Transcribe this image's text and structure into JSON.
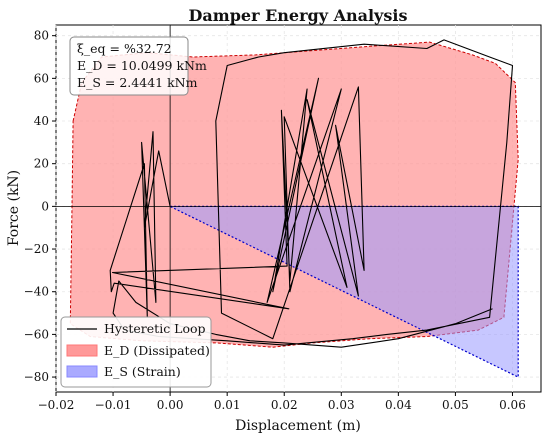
{
  "chart_data": {
    "type": "line",
    "title": "Damper Energy Analysis",
    "xlabel": "Displacement (m)",
    "ylabel": "Force (kN)",
    "xlim": [
      -0.02,
      0.065
    ],
    "ylim": [
      -87,
      85
    ],
    "xticks": [
      -0.02,
      -0.01,
      0.0,
      0.01,
      0.02,
      0.03,
      0.04,
      0.05,
      0.06
    ],
    "xtick_labels": [
      "−0.02",
      "−0.01",
      "0.00",
      "0.01",
      "0.02",
      "0.03",
      "0.04",
      "0.05",
      "0.06"
    ],
    "yticks": [
      -80,
      -60,
      -40,
      -20,
      0,
      20,
      40,
      60,
      80
    ],
    "ytick_labels": [
      "−80",
      "−60",
      "−40",
      "−20",
      "0",
      "20",
      "40",
      "60",
      "80"
    ],
    "grid": true,
    "legend_position": "lower-left",
    "annotations": {
      "xi_eq": "ξ_eq = %32.72",
      "e_d": "E_D = 10.0499 kNm",
      "e_s": "E_S = 2.4441 kNm"
    },
    "series": [
      {
        "name": "E_D (Dissipated)",
        "kind": "filled-polygon",
        "color": "#ff9999",
        "edge_color": "#cc0000",
        "x": [
          -0.017,
          -0.0155,
          -0.012,
          -0.004,
          0.004,
          0.015,
          0.025,
          0.035,
          0.0455,
          0.053,
          0.057,
          0.0605,
          0.061,
          0.0585,
          0.054,
          0.045,
          0.035,
          0.025,
          0.018,
          0.008,
          -0.005,
          -0.014,
          -0.0175,
          -0.0172
        ],
        "y": [
          40,
          58,
          70,
          72,
          70,
          71,
          73,
          75,
          77,
          71,
          67,
          58,
          22,
          -52,
          -58,
          -61,
          -62,
          -64,
          -66,
          -64,
          -63,
          -61,
          -55,
          0
        ]
      },
      {
        "name": "E_S (Strain)",
        "kind": "filled-triangle",
        "color": "#9999ff",
        "edge_color": "#0000cc",
        "x": [
          0.0,
          0.061,
          0.061
        ],
        "y": [
          0,
          0,
          -80
        ]
      },
      {
        "name": "Hysteretic Loop",
        "kind": "line",
        "color": "#000000",
        "x": [
          0.0,
          -0.002,
          -0.0045,
          -0.003,
          -0.0025,
          -0.005,
          -0.004,
          -0.0045,
          -0.0105,
          -0.0103,
          -0.0098,
          0.0208,
          -0.0101,
          0.0205,
          0.0195,
          0.021,
          0.024,
          0.018,
          0.026,
          0.017,
          0.03,
          0.021,
          0.02,
          0.031,
          0.024,
          0.033,
          0.029,
          0.034,
          0.033,
          0.018,
          0.009,
          0.008,
          0.01,
          0.0155,
          0.02,
          0.034,
          0.045,
          0.048,
          0.056,
          0.06,
          0.059,
          0.056,
          0.045,
          0.038,
          0.032,
          0.02,
          0.01,
          -0.002,
          -0.008,
          -0.01,
          -0.009,
          -0.006,
          0.0,
          0.008,
          0.014,
          0.02,
          0.03,
          0.04,
          0.05,
          0.0565
        ],
        "y": [
          0,
          26,
          -10,
          35,
          -45,
          30,
          -52,
          20,
          -30,
          -40,
          -36,
          -48,
          -31,
          -28,
          45,
          -35,
          55,
          -40,
          60,
          -45,
          55,
          -40,
          42,
          -38,
          50,
          -42,
          38,
          -30,
          56,
          -62,
          -50,
          40,
          66,
          70,
          72,
          76,
          74,
          78,
          70,
          66,
          30,
          -52,
          -58,
          -60,
          -62,
          -65,
          -63,
          -61,
          -58,
          -50,
          -35,
          -45,
          -55,
          -60,
          -63,
          -64,
          -66,
          -62,
          -55,
          -48
        ]
      }
    ]
  },
  "legend": {
    "items": [
      {
        "label": "Hysteretic Loop",
        "color": "#000000",
        "kind": "line"
      },
      {
        "label": "E_D (Dissipated)",
        "color": "#ff9999",
        "kind": "patch"
      },
      {
        "label": "E_S (Strain)",
        "color": "#aaaaff",
        "kind": "patch"
      }
    ]
  }
}
